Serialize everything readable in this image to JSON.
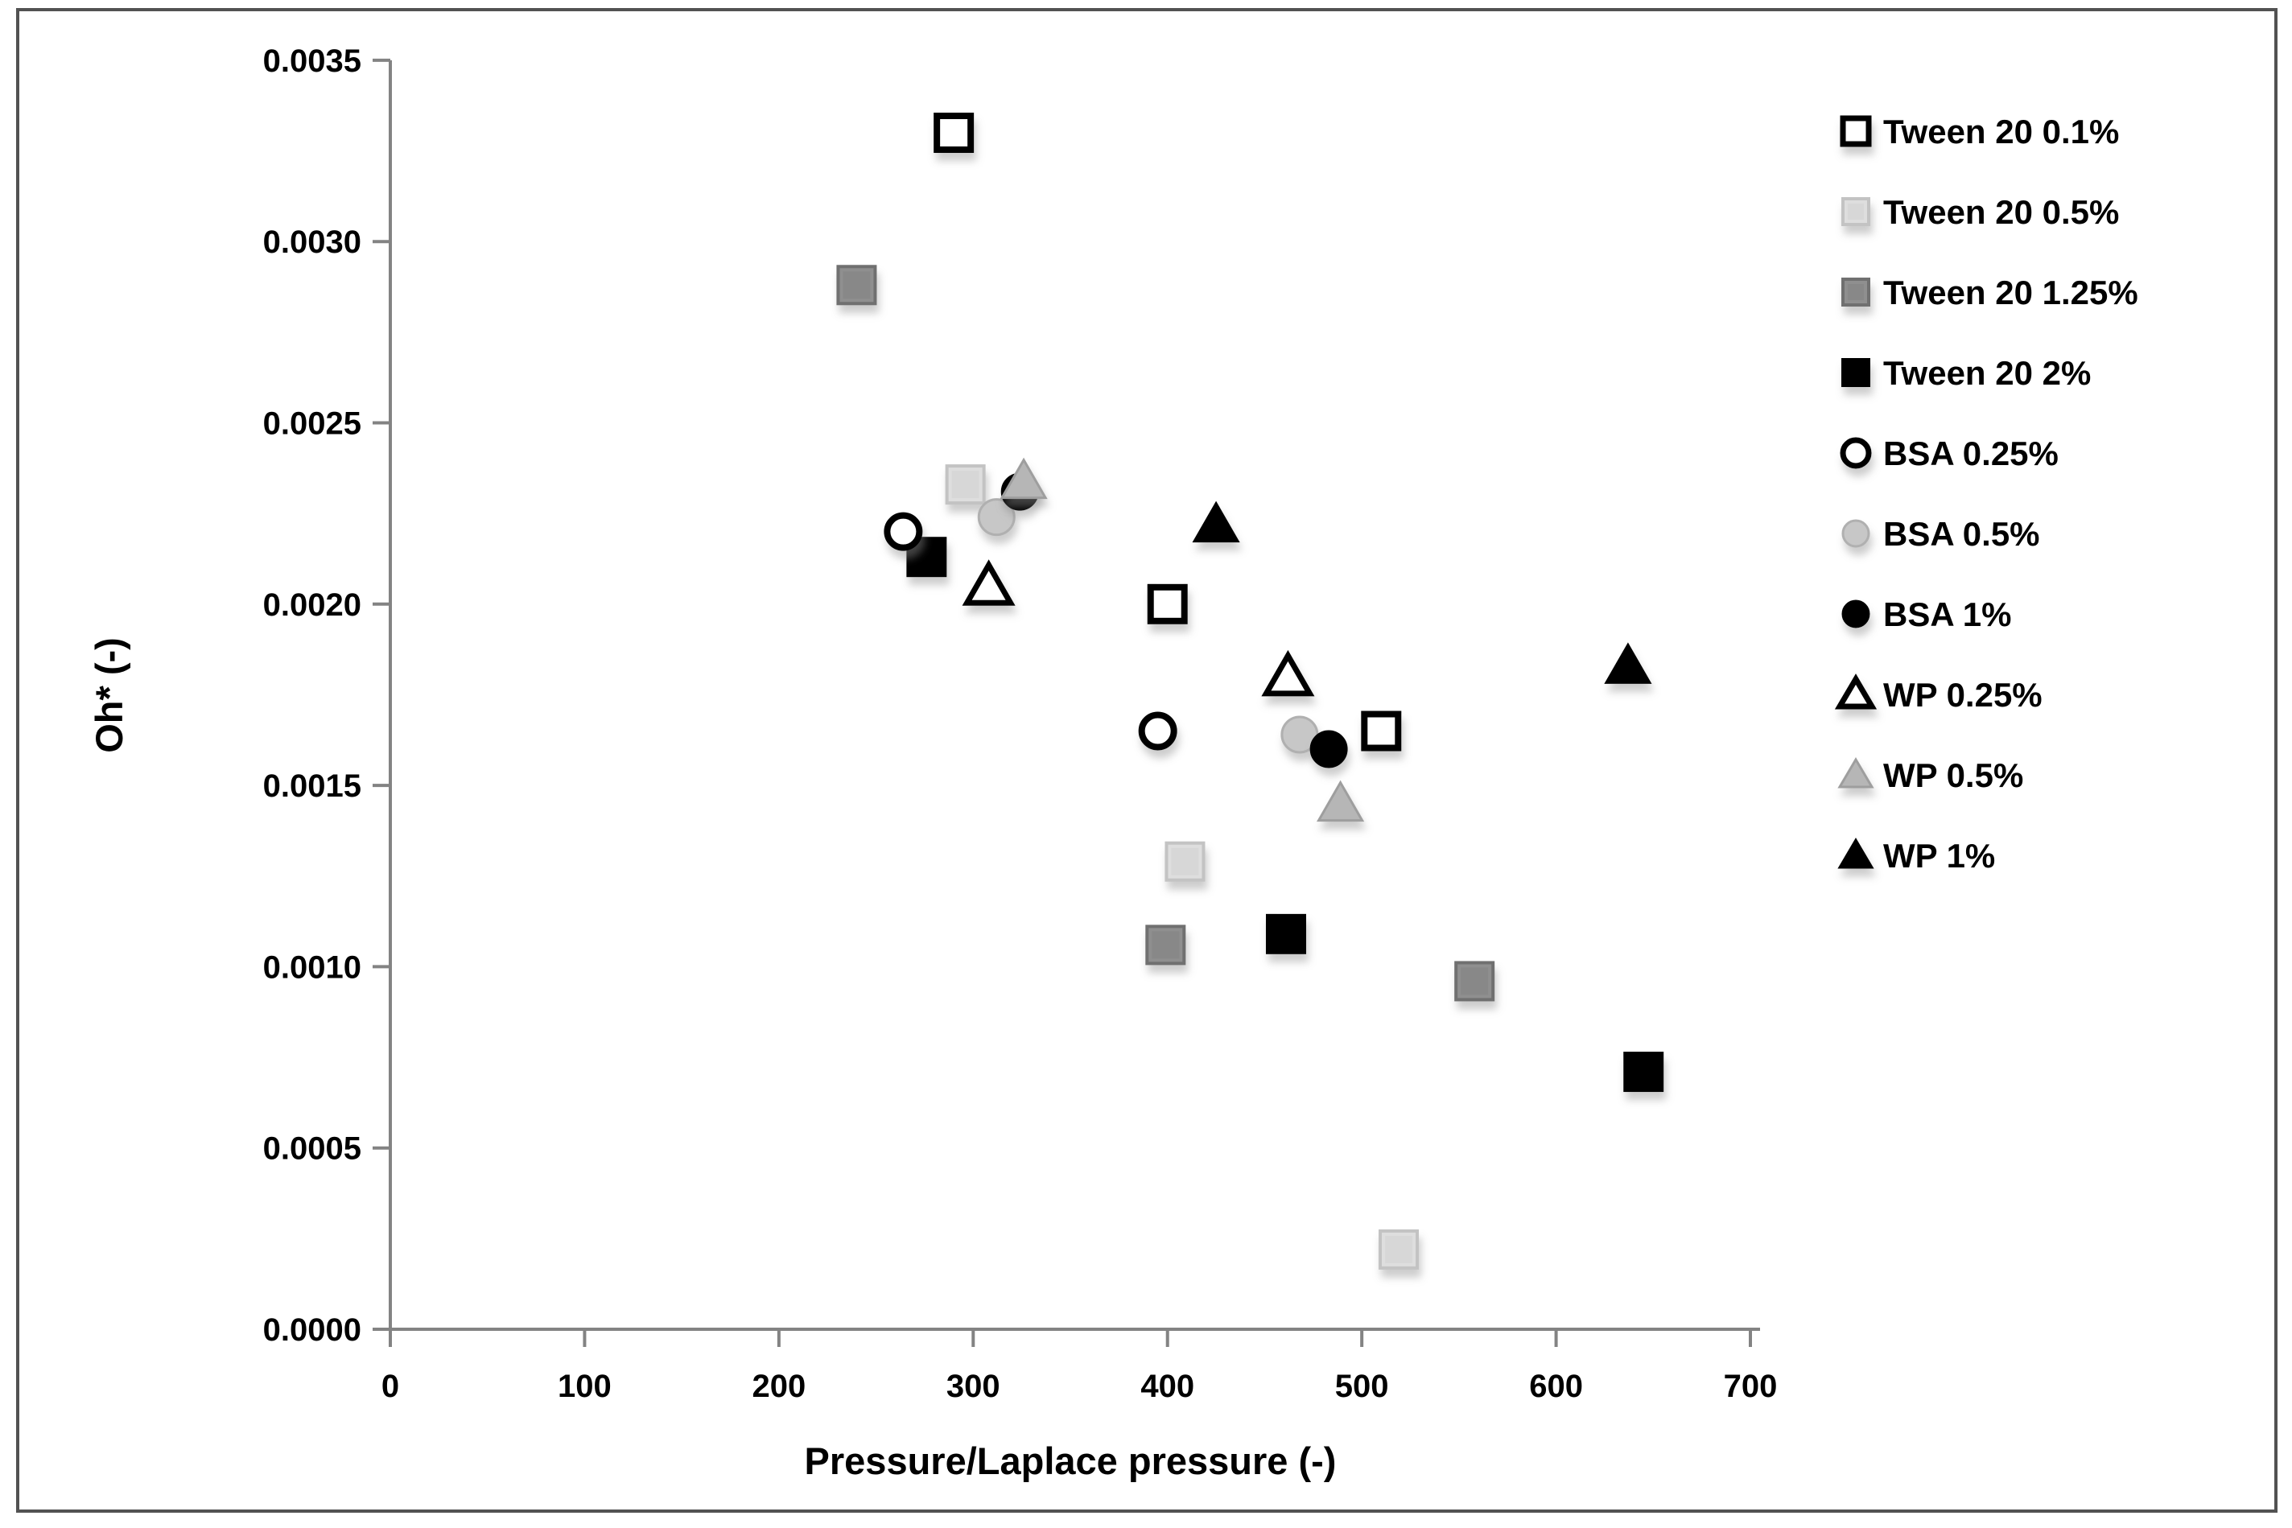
{
  "figure": {
    "background": "#ffffff",
    "border_color": "#525252"
  },
  "chart_data": {
    "type": "scatter",
    "title": "",
    "xlabel": "Pressure/Laplace pressure (-)",
    "ylabel": "Oh* (-)",
    "xlim": [
      0,
      700
    ],
    "ylim": [
      0,
      0.0035
    ],
    "grid": false,
    "legend_position": "right",
    "axis_color": "#838383",
    "text_color": "#000000",
    "x_tick_labels": [
      "0",
      "100",
      "200",
      "300",
      "400",
      "500",
      "600",
      "700"
    ],
    "x_ticks": [
      0,
      100,
      200,
      300,
      400,
      500,
      600,
      700
    ],
    "y_tick_labels": [
      "0.0000",
      "0.0005",
      "0.0010",
      "0.0015",
      "0.0020",
      "0.0025",
      "0.0030",
      "0.0035"
    ],
    "y_ticks": [
      0,
      0.0005,
      0.001,
      0.0015,
      0.002,
      0.0025,
      0.003,
      0.0035
    ],
    "series": [
      {
        "id": "tween20-0-1",
        "name": "Tween 20 0.1%",
        "marker": {
          "shape": "square",
          "open": true,
          "fill": "#ffffff",
          "fill2": "#ffffff",
          "stroke": "#000000"
        },
        "points": [
          [
            290,
            0.0033
          ],
          [
            400,
            0.002
          ],
          [
            510,
            0.00165
          ]
        ]
      },
      {
        "id": "tween20-0-5",
        "name": "Tween 20 0.5%",
        "marker": {
          "shape": "square",
          "open": false,
          "fill": "#dedede",
          "fill2": "#cbcbcb",
          "stroke": "#c3c3c3"
        },
        "points": [
          [
            296,
            0.00233
          ],
          [
            409,
            0.00129
          ],
          [
            519,
            0.00022
          ]
        ]
      },
      {
        "id": "tween20-1-25",
        "name": "Tween 20 1.25%",
        "marker": {
          "shape": "square",
          "open": false,
          "fill": "#8f8f8f",
          "fill2": "#7a7a7a",
          "stroke": "#6f6f6f"
        },
        "points": [
          [
            240,
            0.00288
          ],
          [
            399,
            0.00106
          ],
          [
            558,
            0.00096
          ]
        ]
      },
      {
        "id": "tween20-2",
        "name": "Tween 20 2%",
        "marker": {
          "shape": "square",
          "open": false,
          "fill": "#000000",
          "fill2": "#000000",
          "stroke": "#000000"
        },
        "points": [
          [
            276,
            0.00213
          ],
          [
            461,
            0.00109
          ],
          [
            645,
            0.00071
          ]
        ]
      },
      {
        "id": "bsa-0-25",
        "name": "BSA 0.25%",
        "marker": {
          "shape": "circle",
          "open": true,
          "fill": "#ffffff",
          "fill2": "#ffffff",
          "stroke": "#000000"
        },
        "points": [
          [
            264,
            0.0022
          ],
          [
            395,
            0.00165
          ]
        ]
      },
      {
        "id": "bsa-0-5",
        "name": "BSA 0.5%",
        "marker": {
          "shape": "circle",
          "open": false,
          "fill": "#c7c7c7",
          "fill2": "#b6b6b6",
          "stroke": "#b0b0b0"
        },
        "points": [
          [
            312,
            0.00224
          ],
          [
            468,
            0.00164
          ]
        ]
      },
      {
        "id": "bsa-1",
        "name": "BSA 1%",
        "marker": {
          "shape": "circle",
          "open": false,
          "fill": "#000000",
          "fill2": "#000000",
          "stroke": "#000000"
        },
        "points": [
          [
            324,
            0.00231
          ],
          [
            483,
            0.0016
          ]
        ]
      },
      {
        "id": "wp-0-25",
        "name": "WP 0.25%",
        "marker": {
          "shape": "triangle",
          "open": true,
          "fill": "#ffffff",
          "fill2": "#ffffff",
          "stroke": "#000000"
        },
        "points": [
          [
            308,
            0.00205
          ],
          [
            462,
            0.0018
          ]
        ]
      },
      {
        "id": "wp-0-5",
        "name": "WP 0.5%",
        "marker": {
          "shape": "triangle",
          "open": false,
          "fill": "#b6b6b6",
          "fill2": "#a5a5a5",
          "stroke": "#9e9e9e"
        },
        "points": [
          [
            326,
            0.00234
          ],
          [
            489,
            0.00145
          ]
        ]
      },
      {
        "id": "wp-1",
        "name": "WP 1%",
        "marker": {
          "shape": "triangle",
          "open": false,
          "fill": "#000000",
          "fill2": "#000000",
          "stroke": "#000000"
        },
        "points": [
          [
            425,
            0.00222
          ],
          [
            637,
            0.00183
          ]
        ]
      }
    ]
  }
}
